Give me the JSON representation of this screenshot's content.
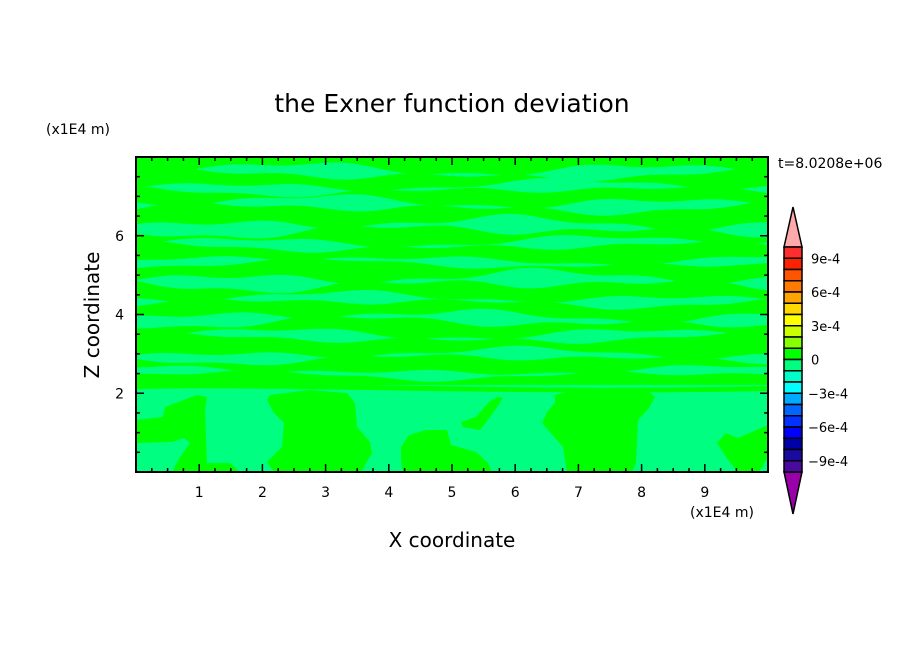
{
  "chart_data": {
    "type": "heatmap",
    "subtype": "filled-contour",
    "title": "the Exner function deviation",
    "xlabel": "X coordinate",
    "ylabel": "Z coordinate",
    "x_unit": "(x1E4 m)",
    "y_unit": "(x1E4 m)",
    "time_label": "t=8.0208e+06",
    "xlim": [
      0,
      10
    ],
    "ylim": [
      0,
      8
    ],
    "x_ticks": [
      1,
      2,
      3,
      4,
      5,
      6,
      7,
      8,
      9
    ],
    "y_ticks": [
      2,
      4,
      6
    ],
    "grid": false,
    "field_levels_present": [
      "-1e-4 to 0",
      "0 to 1e-4"
    ],
    "colorbar": {
      "min": -0.001,
      "max": 0.001,
      "step": 0.0001,
      "tick_labels": [
        "9e-4",
        "6e-4",
        "3e-4",
        "0",
        "−3e-4",
        "−6e-4",
        "−9e-4"
      ],
      "tick_values": [
        0.0009,
        0.0006,
        0.0003,
        0,
        -0.0003,
        -0.0006,
        -0.0009
      ],
      "colors_top_to_bottom": [
        "#ff2e2e",
        "#ff2200",
        "#ff5500",
        "#ff7a00",
        "#ffa500",
        "#ffd800",
        "#ffff00",
        "#ccff00",
        "#88ff00",
        "#00ff00",
        "#00ff80",
        "#00ffc8",
        "#00ffff",
        "#00aaff",
        "#0066ff",
        "#0033ff",
        "#0000ff",
        "#0000aa",
        "#1a0aa0",
        "#4a0aa0"
      ],
      "over_color": "#ffaaaa",
      "under_color": "#9900aa"
    }
  }
}
